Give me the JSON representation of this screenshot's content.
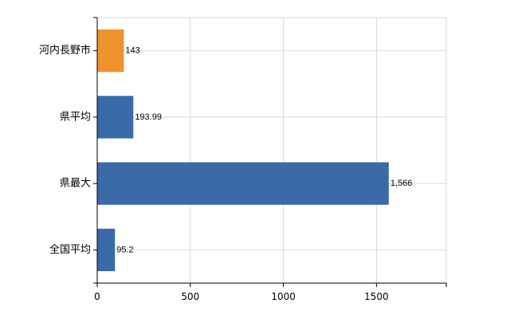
{
  "chart_data": {
    "type": "bar",
    "orientation": "horizontal",
    "categories": [
      "河内長野市",
      "県平均",
      "県最大",
      "全国平均"
    ],
    "values": [
      143,
      193.99,
      1566,
      95.2
    ],
    "value_labels": [
      "143",
      "193.99",
      "1,566",
      "95.2"
    ],
    "bar_colors": [
      "#F0912F",
      "#3A6AA8",
      "#3A6AA8",
      "#3A6AA8"
    ],
    "title": "",
    "xlabel": "",
    "ylabel": "",
    "xlim": [
      0,
      1875
    ],
    "x_ticks": [
      0,
      500,
      1000,
      1500
    ],
    "x_tick_labels": [
      "0",
      "500",
      "1000",
      "1500"
    ],
    "grid": true,
    "legend": "none"
  }
}
